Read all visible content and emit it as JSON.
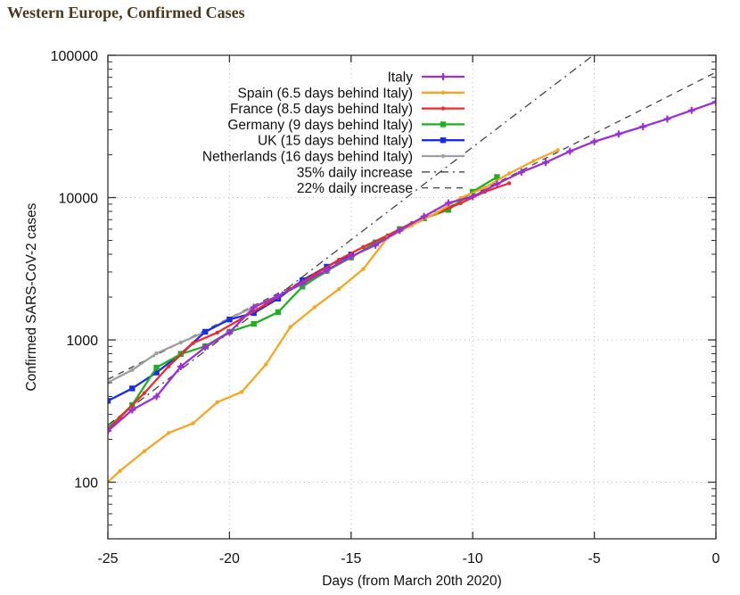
{
  "page": {
    "title": "Western Europe, Confirmed Cases"
  },
  "chart_data": {
    "type": "line",
    "title": "",
    "xlabel": "Days (from March 20th 2020)",
    "ylabel": "Confirmed SARS-CoV-2 cases",
    "xlim": [
      -25,
      0
    ],
    "ylim": [
      40,
      100000
    ],
    "yscale": "log",
    "grid": true,
    "legend_position": "top-right",
    "x_ticks": [
      -25,
      -20,
      -15,
      -10,
      -5,
      0
    ],
    "x_tick_labels": [
      "-25",
      "-20",
      "-15",
      "-10",
      "-5",
      "0"
    ],
    "y_ticks": [
      100,
      1000,
      10000,
      100000
    ],
    "y_tick_labels": [
      "100",
      "1000",
      "10000",
      "100000"
    ],
    "series": [
      {
        "name": "Italy",
        "color": "#9b30d9",
        "marker": "plus",
        "x": [
          -25,
          -24,
          -23,
          -22,
          -21,
          -20,
          -19,
          -18,
          -17,
          -16,
          -15,
          -14,
          -13,
          -12,
          -11,
          -10,
          -9,
          -8,
          -7,
          -6,
          -5,
          -4,
          -3,
          -2,
          -1,
          0
        ],
        "y": [
          229,
          322,
          400,
          650,
          888,
          1128,
          1694,
          2036,
          2502,
          3089,
          3858,
          4636,
          5883,
          7375,
          9172,
          10149,
          12462,
          15113,
          17660,
          21157,
          24747,
          27980,
          31506,
          35713,
          41035,
          47021
        ]
      },
      {
        "name": "Spain (6.5 days behind Italy)",
        "color": "#f5a623",
        "marker": "dot",
        "x": [
          -25.5,
          -24.5,
          -23.5,
          -22.5,
          -21.5,
          -20.5,
          -19.5,
          -18.5,
          -17.5,
          -16.5,
          -15.5,
          -14.5,
          -13.5,
          -12.5,
          -11.5,
          -10.5,
          -9.5,
          -8.5,
          -7.5,
          -6.5
        ],
        "y": [
          84,
          120,
          165,
          222,
          259,
          365,
          430,
          673,
          1231,
          1695,
          2277,
          3146,
          5232,
          6391,
          7798,
          9942,
          11748,
          14769,
          18077,
          21571
        ]
      },
      {
        "name": "France (8.5 days behind Italy)",
        "color": "#ee2a2a",
        "marker": "dot",
        "x": [
          -25.5,
          -24.5,
          -23.5,
          -22.5,
          -21.5,
          -20.5,
          -19.5,
          -18.5,
          -17.5,
          -16.5,
          -15.5,
          -14.5,
          -13.5,
          -12.5,
          -11.5,
          -10.5,
          -9.5,
          -8.5
        ],
        "y": [
          191,
          285,
          423,
          653,
          949,
          1126,
          1412,
          1784,
          2281,
          2876,
          3661,
          4499,
          5423,
          6633,
          7730,
          9134,
          10995,
          12612
        ]
      },
      {
        "name": "Germany (9 days behind Italy)",
        "color": "#22b022",
        "marker": "square",
        "x": [
          -25,
          -24,
          -23,
          -22,
          -21,
          -20,
          -19,
          -18,
          -17,
          -16,
          -15,
          -14,
          -13,
          -12,
          -11,
          -10,
          -9
        ],
        "y": [
          240,
          349,
          639,
          795,
          902,
          1139,
          1296,
          1567,
          2369,
          3062,
          3795,
          4838,
          6012,
          7156,
          8198,
          10999,
          13957
        ]
      },
      {
        "name": "UK (15 days behind Italy)",
        "color": "#1a2ee8",
        "marker": "square",
        "x": [
          -25,
          -24,
          -23,
          -22,
          -21,
          -20,
          -19,
          -18,
          -17,
          -16,
          -15
        ],
        "y": [
          373,
          456,
          590,
          798,
          1140,
          1391,
          1543,
          1950,
          2626,
          3269,
          3983
        ]
      },
      {
        "name": "Netherlands (16 days behind Italy)",
        "color": "#a0a0a0",
        "marker": "dot",
        "x": [
          -25,
          -24,
          -23,
          -22,
          -21,
          -20,
          -19,
          -18,
          -17,
          -16
        ],
        "y": [
          503,
          614,
          804,
          959,
          1135,
          1413,
          1705,
          2051,
          2460,
          2994
        ]
      },
      {
        "name": "35% daily increase",
        "color": "#444444",
        "dash": "dashdot",
        "x": [
          -25,
          0
        ],
        "y": [
          252,
          454000
        ]
      },
      {
        "name": "22% daily increase",
        "color": "#444444",
        "dash": "dashed",
        "x": [
          -25,
          0
        ],
        "y": [
          528,
          76000
        ]
      }
    ]
  }
}
